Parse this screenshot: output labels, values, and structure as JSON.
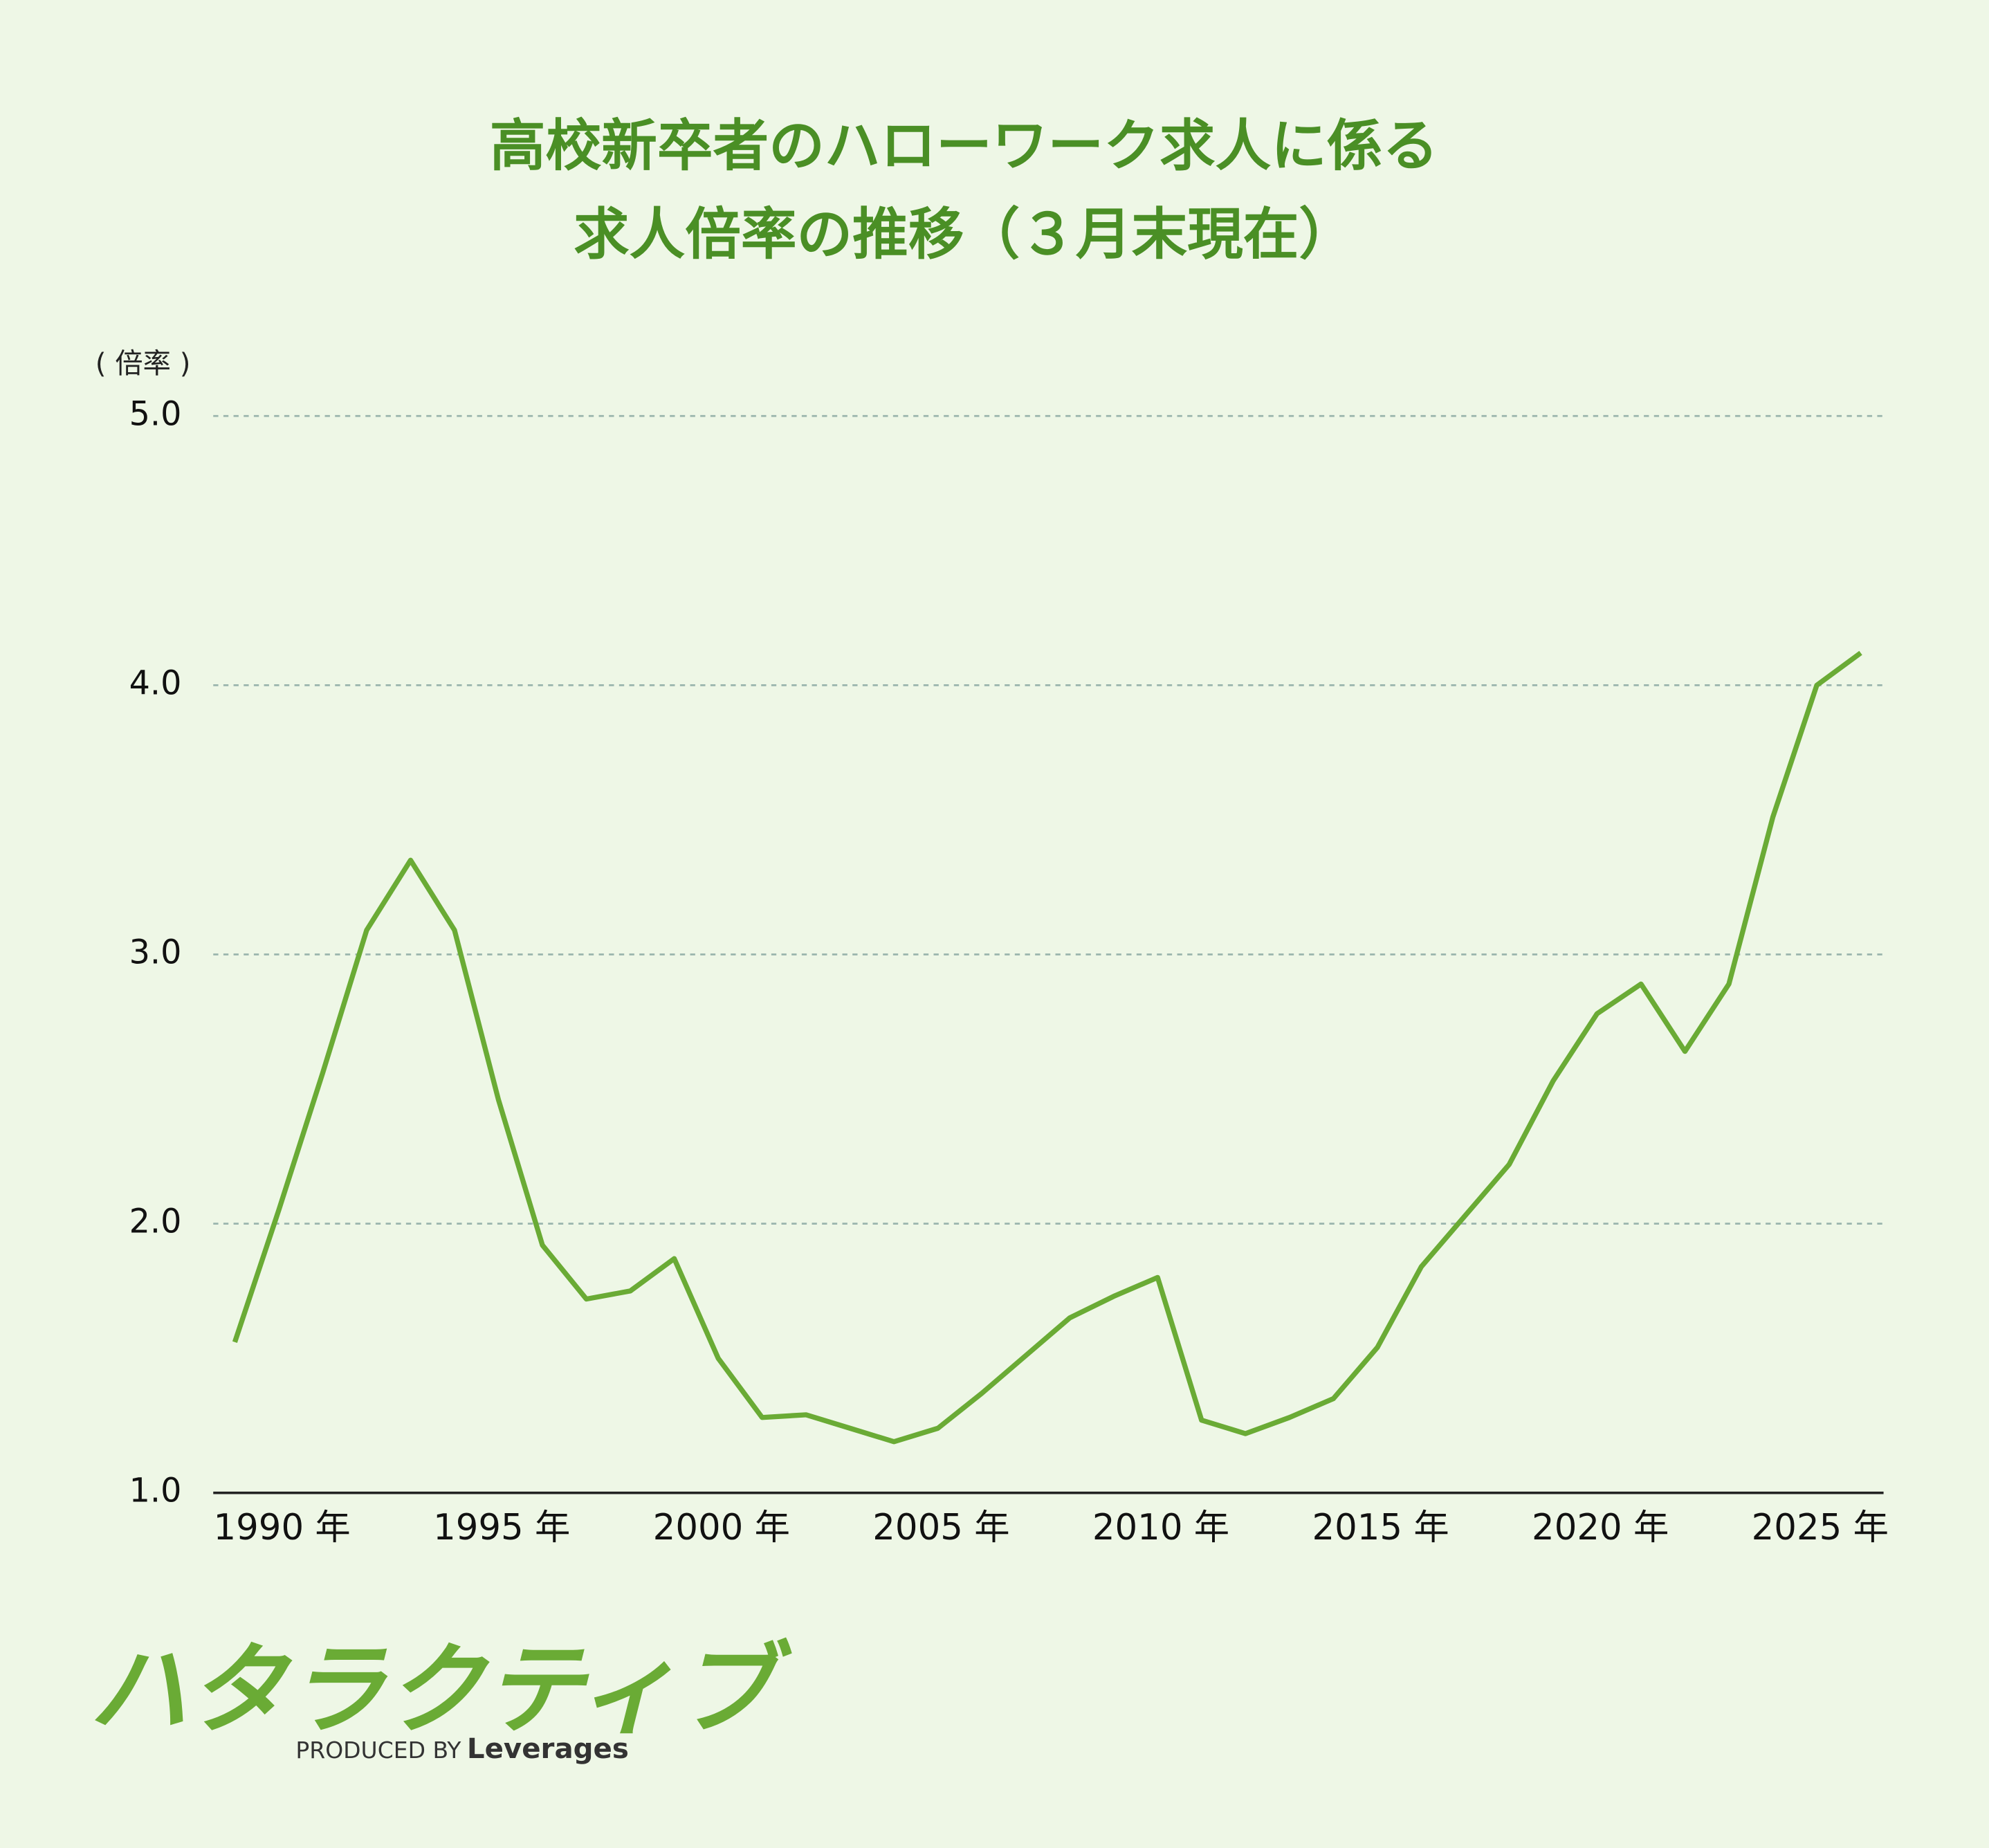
{
  "chart_data": {
    "type": "line",
    "title": "高校新卒者のハローワーク求人に係る",
    "subtitle": "求人倍率の推移（３月末現在）",
    "y_label": "( 倍率 )",
    "x": [
      1988,
      1989,
      1990,
      1991,
      1992,
      1993,
      1994,
      1995,
      1996,
      1997,
      1998,
      1999,
      2000,
      2001,
      2002,
      2003,
      2004,
      2005,
      2006,
      2007,
      2008,
      2009,
      2010,
      2011,
      2012,
      2013,
      2014,
      2015,
      2016,
      2017,
      2018,
      2019,
      2020,
      2021,
      2022,
      2023,
      2024,
      2025
    ],
    "series": [
      {
        "color": "#6aab35",
        "values": [
          1.56,
          2.05,
          2.56,
          3.09,
          3.35,
          3.09,
          2.46,
          1.92,
          1.72,
          1.75,
          1.87,
          1.5,
          1.28,
          1.29,
          1.24,
          1.19,
          1.24,
          1.37,
          1.51,
          1.65,
          1.73,
          1.8,
          1.27,
          1.22,
          1.28,
          1.35,
          1.54,
          1.84,
          2.03,
          2.22,
          2.53,
          2.78,
          2.89,
          2.64,
          2.89,
          3.51,
          4.0,
          4.12
        ]
      }
    ],
    "xlim": [
      1988,
      2025
    ],
    "xticks": [
      {
        "value": 1990,
        "label": "1990 年"
      },
      {
        "value": 1995,
        "label": "1995 年"
      },
      {
        "value": 2000,
        "label": "2000 年"
      },
      {
        "value": 2005,
        "label": "2005 年"
      },
      {
        "value": 2010,
        "label": "2010 年"
      },
      {
        "value": 2015,
        "label": "2015 年"
      },
      {
        "value": 2020,
        "label": "2020 年"
      },
      {
        "value": 2025,
        "label": "2025 年"
      }
    ],
    "ylim": [
      1.0,
      5.0
    ],
    "yticks": [
      {
        "value": 1.0,
        "label": "1.0"
      },
      {
        "value": 2.0,
        "label": "2.0"
      },
      {
        "value": 3.0,
        "label": "3.0"
      },
      {
        "value": 4.0,
        "label": "4.0"
      },
      {
        "value": 5.0,
        "label": "5.0"
      }
    ],
    "grid": true
  },
  "logo": {
    "brand": "ハタラクティブ",
    "produced_by": "PRODUCED BY",
    "company": "Leverages"
  }
}
